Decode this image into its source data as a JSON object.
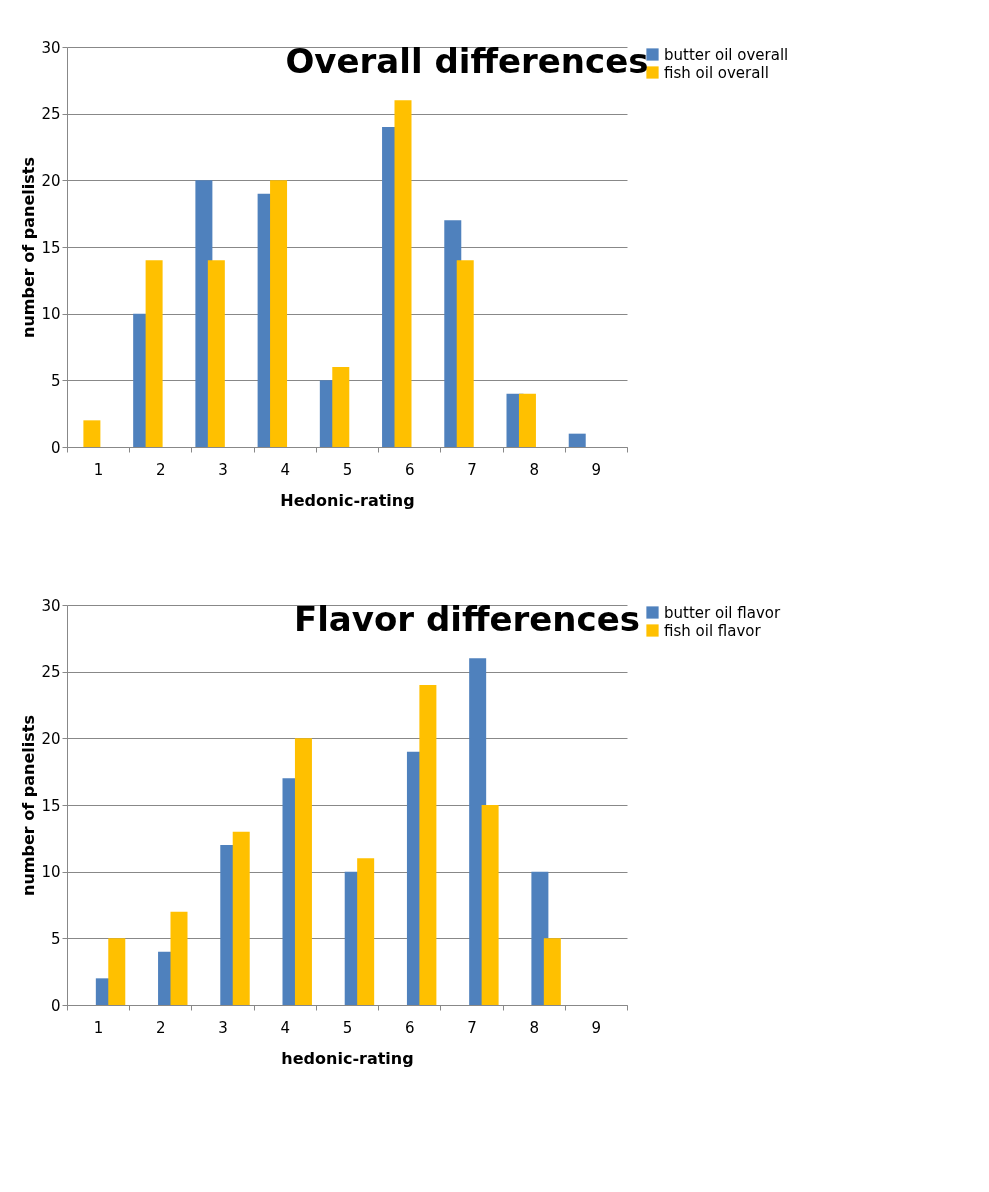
{
  "chart_data": [
    {
      "type": "bar",
      "title": "Overall differences",
      "xlabel": "Hedonic-rating",
      "ylabel": "number of panelists",
      "categories": [
        "1",
        "2",
        "3",
        "4",
        "5",
        "6",
        "7",
        "8",
        "9"
      ],
      "series": [
        {
          "name": "butter oil overall",
          "color": "#4f81bd",
          "values": [
            0,
            10,
            20,
            19,
            5,
            24,
            17,
            4,
            1
          ]
        },
        {
          "name": "fish oil overall",
          "color": "#ffc000",
          "values": [
            2,
            14,
            14,
            20,
            6,
            26,
            14,
            4,
            0
          ]
        }
      ],
      "ylim": [
        0,
        30
      ],
      "yticks": [
        0,
        5,
        10,
        15,
        20,
        25,
        30
      ],
      "grid": "y",
      "legend": "right"
    },
    {
      "type": "bar",
      "title": "Flavor differences",
      "xlabel": "hedonic-rating",
      "ylabel": "number of panelists",
      "categories": [
        "1",
        "2",
        "3",
        "4",
        "5",
        "6",
        "7",
        "8",
        "9"
      ],
      "series": [
        {
          "name": "butter oil flavor",
          "color": "#4f81bd",
          "values": [
            2,
            4,
            12,
            17,
            10,
            19,
            26,
            10,
            0
          ]
        },
        {
          "name": "fish oil flavor",
          "color": "#ffc000",
          "values": [
            5,
            7,
            13,
            20,
            11,
            24,
            15,
            5,
            0
          ]
        }
      ],
      "ylim": [
        0,
        30
      ],
      "yticks": [
        0,
        5,
        10,
        15,
        20,
        25,
        30
      ],
      "grid": "y",
      "legend": "right"
    }
  ]
}
